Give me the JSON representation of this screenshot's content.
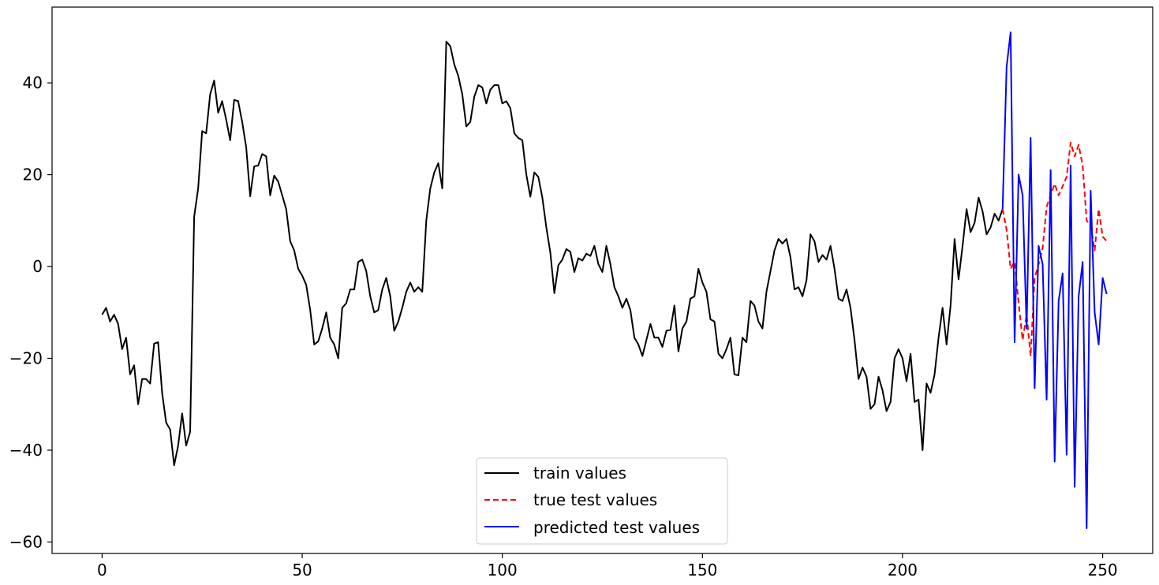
{
  "chart_data": {
    "type": "line",
    "title": "",
    "xlabel": "",
    "ylabel": "",
    "xlim": [
      -12.5,
      262.5
    ],
    "ylim": [
      -62.5,
      56.5
    ],
    "xticks": [
      0,
      50,
      100,
      150,
      200,
      250
    ],
    "yticks": [
      -60,
      -40,
      -20,
      0,
      20,
      40
    ],
    "grid": false,
    "legend_position": "lower center",
    "series": [
      {
        "name": "train values",
        "color": "#000000",
        "style": "solid",
        "x_start": 0,
        "values": [
          -10.5,
          -9.0,
          -12.0,
          -10.5,
          -12.5,
          -18.0,
          -15.5,
          -23.5,
          -21.5,
          -30.0,
          -24.5,
          -24.5,
          -25.5,
          -16.8,
          -16.5,
          -27.5,
          -34.0,
          -35.5,
          -43.3,
          -39.0,
          -32.0,
          -39.0,
          -36.0,
          10.8,
          17.0,
          29.5,
          29.0,
          37.5,
          40.5,
          33.5,
          36.0,
          32.0,
          27.5,
          36.3,
          36.0,
          31.5,
          26.0,
          15.3,
          21.8,
          22.0,
          24.5,
          24.0,
          15.5,
          19.8,
          18.5,
          15.5,
          12.5,
          5.5,
          3.5,
          -0.5,
          -2.0,
          -4.0,
          -9.5,
          -17.0,
          -16.3,
          -13.5,
          -10.0,
          -15.5,
          -17.0,
          -20.0,
          -9.0,
          -8.0,
          -5.0,
          -5.0,
          1.0,
          1.5,
          -1.0,
          -6.5,
          -10.0,
          -9.5,
          -5.0,
          -2.5,
          -6.5,
          -14.0,
          -12.0,
          -9.0,
          -5.5,
          -3.5,
          -5.5,
          -4.5,
          -5.5,
          10.0,
          17.0,
          20.5,
          22.5,
          17.0,
          49.0,
          48.0,
          44.0,
          41.5,
          37.5,
          30.5,
          31.5,
          37.0,
          39.5,
          39.0,
          35.5,
          38.5,
          39.5,
          39.5,
          35.5,
          36.0,
          34.5,
          29.0,
          28.0,
          27.5,
          20.0,
          15.2,
          20.5,
          19.5,
          15.0,
          8.5,
          3.0,
          -5.8,
          0.3,
          1.5,
          3.8,
          3.2,
          -1.2,
          1.8,
          1.3,
          2.8,
          2.3,
          4.5,
          0.5,
          -1.2,
          4.5,
          0.5,
          -4.5,
          -6.5,
          -9.0,
          -7.0,
          -9.5,
          -15.5,
          -17.0,
          -19.5,
          -16.0,
          -12.5,
          -15.5,
          -15.5,
          -17.5,
          -14.0,
          -13.8,
          -8.5,
          -18.5,
          -13.5,
          -12.0,
          -7.0,
          -6.5,
          -0.5,
          -3.5,
          -5.5,
          -11.5,
          -12.0,
          -19.0,
          -20.0,
          -18.0,
          -15.5,
          -23.5,
          -23.7,
          -15.5,
          -16.5,
          -7.5,
          -8.5,
          -12.0,
          -13.5,
          -5.5,
          -1.0,
          3.5,
          6.0,
          5.0,
          6.0,
          2.0,
          -5.0,
          -4.5,
          -6.5,
          -3.0,
          7.0,
          5.5,
          1.0,
          2.5,
          1.5,
          4.5,
          -0.5,
          -7.0,
          -7.5,
          -5.0,
          -9.0,
          -16.0,
          -24.5,
          -22.0,
          -24.0,
          -31.0,
          -30.0,
          -24.0,
          -27.0,
          -31.5,
          -29.5,
          -20.0,
          -18.0,
          -20.0,
          -25.0,
          -19.0,
          -29.5,
          -29.0,
          -40.0,
          -25.5,
          -27.5,
          -23.5,
          -15.5,
          -9.0,
          -17.0,
          -8.5,
          6.0,
          -2.8,
          4.5,
          12.5,
          7.5,
          9.5,
          15.0,
          12.0,
          7.0,
          8.5,
          11.5,
          10.0,
          12.5
        ]
      },
      {
        "name": "true test values",
        "color": "#ff0000",
        "style": "dashed",
        "x_start": 225,
        "values": [
          12.5,
          8.0,
          -0.5,
          1.0,
          -8.0,
          -16.0,
          -10.5,
          -19.5,
          -2.5,
          0.5,
          4.0,
          13.0,
          15.5,
          18.0,
          15.5,
          17.5,
          19.5,
          27.0,
          24.0,
          26.5,
          22.0,
          10.0,
          9.0,
          3.5,
          12.5,
          6.5,
          5.5
        ]
      },
      {
        "name": "predicted test values",
        "color": "#0000ff",
        "style": "solid",
        "x_start": 225,
        "values": [
          12.5,
          43.5,
          51.0,
          -16.5,
          20.0,
          15.5,
          -13.5,
          28.0,
          -26.5,
          4.5,
          0.5,
          -29.0,
          21.0,
          -42.5,
          -7.5,
          -1.5,
          -41.0,
          22.0,
          -48.0,
          -6.5,
          1.0,
          -57.0,
          16.5,
          -10.0,
          -17.0,
          -2.5,
          -6.0
        ]
      }
    ]
  }
}
